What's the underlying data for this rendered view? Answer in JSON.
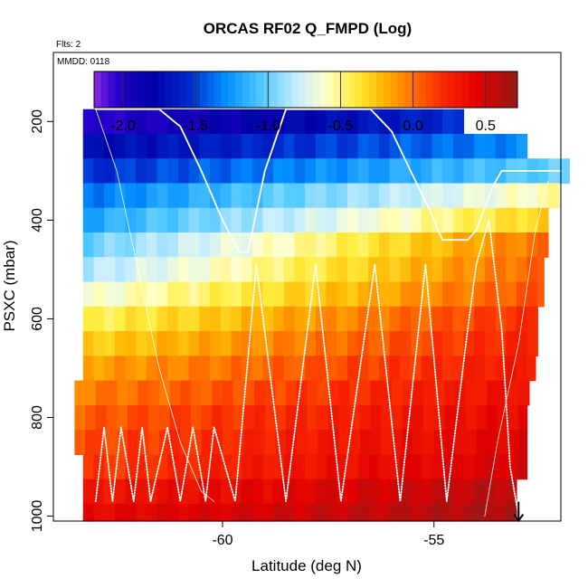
{
  "chart_data": {
    "type": "heatmap",
    "title": "ORCAS RF02 Q_FMPD (Log)",
    "flights_note": "Flts: 2",
    "date_note": "MMDD: 0118",
    "xlabel": "Latitude (deg N)",
    "ylabel": "PSXC (mbar)",
    "xlim": [
      -64.0,
      -52.0
    ],
    "ylim": [
      1010,
      60
    ],
    "x_ticks": [
      -60,
      -55
    ],
    "y_ticks": [
      200,
      400,
      600,
      800,
      1000
    ],
    "colorbar": {
      "range": [
        -2.2,
        0.72
      ],
      "ticks": [
        -2.0,
        -1.5,
        -1.0,
        -0.5,
        0.0,
        0.5
      ],
      "tick_labels": [
        "-2.0",
        "-1.5",
        "-1.0",
        "-0.5",
        "0.0",
        "0.5"
      ]
    },
    "lat_bin_width": 0.25,
    "pressure_bins": [
      {
        "p_top": 175,
        "p_bot": 225,
        "lat_min": -63.3,
        "lat_max": -54.3,
        "v_start": -2.05,
        "v_end": -1.55
      },
      {
        "p_top": 225,
        "p_bot": 275,
        "lat_min": -63.3,
        "lat_max": -52.7,
        "v_start": -1.75,
        "v_end": -1.3
      },
      {
        "p_top": 275,
        "p_bot": 325,
        "lat_min": -63.3,
        "lat_max": -51.8,
        "v_start": -1.55,
        "v_end": -1.0
      },
      {
        "p_top": 325,
        "p_bot": 375,
        "lat_min": -63.3,
        "lat_max": -52.0,
        "v_start": -1.35,
        "v_end": -0.55
      },
      {
        "p_top": 375,
        "p_bot": 425,
        "lat_min": -63.3,
        "lat_max": -52.2,
        "v_start": -1.2,
        "v_end": -0.3
      },
      {
        "p_top": 425,
        "p_bot": 475,
        "lat_min": -63.3,
        "lat_max": -52.3,
        "v_start": -1.0,
        "v_end": 0.0
      },
      {
        "p_top": 475,
        "p_bot": 525,
        "lat_min": -63.3,
        "lat_max": -52.4,
        "v_start": -0.85,
        "v_end": 0.05
      },
      {
        "p_top": 525,
        "p_bot": 575,
        "lat_min": -63.3,
        "lat_max": -52.4,
        "v_start": -0.65,
        "v_end": 0.1
      },
      {
        "p_top": 575,
        "p_bot": 625,
        "lat_min": -63.3,
        "lat_max": -52.5,
        "v_start": -0.45,
        "v_end": 0.2
      },
      {
        "p_top": 625,
        "p_bot": 675,
        "lat_min": -63.3,
        "lat_max": -52.5,
        "v_start": -0.3,
        "v_end": 0.25
      },
      {
        "p_top": 675,
        "p_bot": 725,
        "lat_min": -63.3,
        "lat_max": -52.6,
        "v_start": -0.15,
        "v_end": 0.3
      },
      {
        "p_top": 725,
        "p_bot": 775,
        "lat_min": -63.5,
        "lat_max": -52.7,
        "v_start": -0.05,
        "v_end": 0.35
      },
      {
        "p_top": 775,
        "p_bot": 825,
        "lat_min": -63.5,
        "lat_max": -52.8,
        "v_start": 0.05,
        "v_end": 0.4
      },
      {
        "p_top": 825,
        "p_bot": 875,
        "lat_min": -63.5,
        "lat_max": -52.8,
        "v_start": 0.1,
        "v_end": 0.45
      },
      {
        "p_top": 875,
        "p_bot": 925,
        "lat_min": -63.3,
        "lat_max": -52.8,
        "v_start": 0.15,
        "v_end": 0.5
      },
      {
        "p_top": 925,
        "p_bot": 975,
        "lat_min": -63.3,
        "lat_max": -53.0,
        "v_start": 0.3,
        "v_end": 0.6
      },
      {
        "p_top": 975,
        "p_bot": 1010,
        "lat_min": -63.3,
        "lat_max": -53.0,
        "v_start": 0.4,
        "v_end": 0.65
      }
    ],
    "flight_tracks": [
      {
        "name": "solid track",
        "style": "solid",
        "points": [
          [
            -63.0,
            175
          ],
          [
            -61.5,
            175
          ],
          [
            -61.0,
            210
          ],
          [
            -60.5,
            300
          ],
          [
            -60.0,
            400
          ],
          [
            -59.6,
            465
          ],
          [
            -59.4,
            465
          ],
          [
            -59.0,
            300
          ],
          [
            -58.5,
            175
          ],
          [
            -56.5,
            175
          ],
          [
            -56.0,
            220
          ],
          [
            -55.5,
            310
          ],
          [
            -55.1,
            380
          ],
          [
            -54.8,
            440
          ],
          [
            -54.2,
            440
          ],
          [
            -54.0,
            420
          ],
          [
            -53.6,
            330
          ],
          [
            -53.4,
            300
          ],
          [
            -52.0,
            300
          ]
        ]
      },
      {
        "name": "dotted track",
        "style": "dotted",
        "points": [
          [
            -63.0,
            970
          ],
          [
            -62.8,
            820
          ],
          [
            -62.6,
            970
          ],
          [
            -62.4,
            820
          ],
          [
            -62.1,
            970
          ],
          [
            -61.9,
            820
          ],
          [
            -61.7,
            970
          ],
          [
            -61.3,
            820
          ],
          [
            -61.0,
            970
          ],
          [
            -60.7,
            820
          ],
          [
            -60.4,
            970
          ],
          [
            -60.2,
            820
          ],
          [
            -59.7,
            970
          ],
          [
            -59.2,
            490
          ],
          [
            -58.5,
            970
          ],
          [
            -57.8,
            490
          ],
          [
            -57.2,
            970
          ],
          [
            -56.4,
            490
          ],
          [
            -55.8,
            970
          ],
          [
            -55.2,
            490
          ],
          [
            -54.7,
            970
          ],
          [
            -54.5,
            830
          ],
          [
            -54.2,
            620
          ],
          [
            -54.0,
            490
          ],
          [
            -53.7,
            400
          ],
          [
            -53.4,
            620
          ],
          [
            -53.2,
            900
          ],
          [
            -53.0,
            1000
          ]
        ]
      },
      {
        "name": "thin ascending track",
        "style": "thin",
        "points": [
          [
            -63.0,
            175
          ],
          [
            -62.5,
            300
          ],
          [
            -62.0,
            500
          ],
          [
            -61.5,
            700
          ],
          [
            -61.0,
            850
          ],
          [
            -60.5,
            950
          ],
          [
            -60.2,
            970
          ]
        ]
      },
      {
        "name": "thin return track",
        "style": "thin",
        "points": [
          [
            -53.8,
            1000
          ],
          [
            -53.5,
            850
          ],
          [
            -53.0,
            650
          ],
          [
            -52.6,
            420
          ],
          [
            -52.3,
            320
          ]
        ]
      }
    ],
    "end_marker": {
      "lat": -53.0,
      "pressure": 1000,
      "symbol": "arrow-down"
    }
  }
}
